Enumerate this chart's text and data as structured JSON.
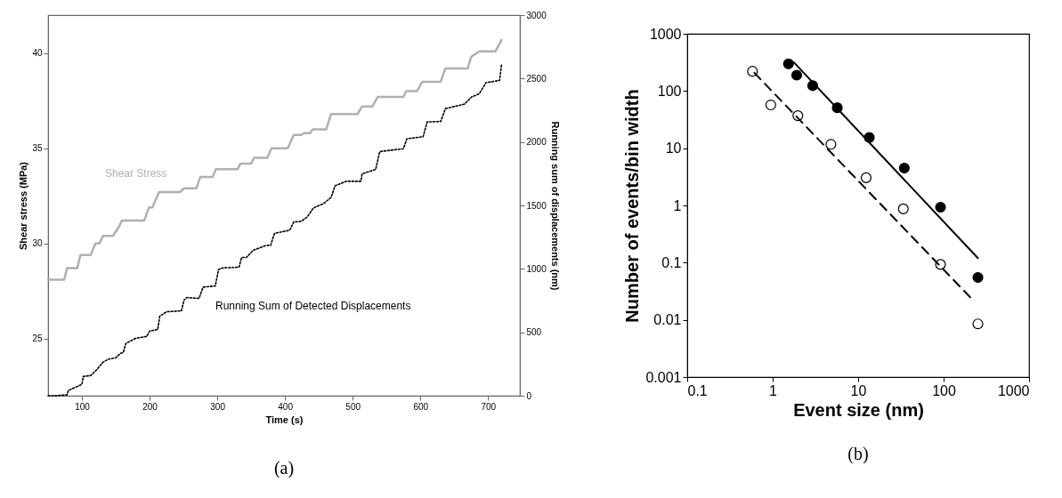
{
  "chart_data": [
    {
      "type": "line",
      "xlabel": "Time (s)",
      "ylabel": "Shear stress (MPa)",
      "y2label": "Running sum of displacements (nm)",
      "xlim": [
        50,
        747
      ],
      "xticks": [
        100,
        200,
        300,
        400,
        500,
        600,
        700
      ],
      "ylim": [
        22,
        42
      ],
      "yticks": [
        25,
        30,
        35,
        40
      ],
      "y2lim": [
        0,
        3000
      ],
      "y2ticks": [
        0,
        500,
        1000,
        1500,
        2000,
        2500,
        3000
      ],
      "annotations": [
        "(a)"
      ],
      "series": [
        {
          "name": "Shear Stress",
          "color": "#b0b0b0",
          "x": [
            50,
            74,
            78,
            93,
            98,
            113,
            120,
            126,
            131,
            146,
            155,
            159,
            192,
            199,
            204,
            214,
            245,
            251,
            269,
            275,
            293,
            298,
            330,
            334,
            350,
            354,
            374,
            380,
            404,
            413,
            424,
            428,
            437,
            441,
            461,
            468,
            507,
            514,
            529,
            537,
            575,
            579,
            595,
            603,
            630,
            637,
            670,
            675,
            687,
            711,
            720
          ],
          "values": [
            28.1,
            28.1,
            28.7,
            28.7,
            29.4,
            29.4,
            30.0,
            30.0,
            30.4,
            30.4,
            30.9,
            31.2,
            31.2,
            31.9,
            31.9,
            32.7,
            32.7,
            32.9,
            32.9,
            33.5,
            33.5,
            33.9,
            33.9,
            34.2,
            34.2,
            34.5,
            34.5,
            35.0,
            35.0,
            35.7,
            35.7,
            35.8,
            35.8,
            36.0,
            36.0,
            36.8,
            36.8,
            37.2,
            37.2,
            37.7,
            37.7,
            38.0,
            38.0,
            38.5,
            38.5,
            39.2,
            39.2,
            39.8,
            40.1,
            40.1,
            40.7
          ]
        },
        {
          "name": "Running Sum of Detected Displacements",
          "color": "#000000",
          "axis": "y2",
          "line_style": "dotted",
          "x": [
            50,
            58,
            78,
            80,
            100,
            102,
            113,
            122,
            131,
            139,
            150,
            157,
            161,
            165,
            179,
            196,
            200,
            212,
            215,
            225,
            247,
            251,
            255,
            273,
            279,
            297,
            302,
            308,
            332,
            336,
            343,
            353,
            371,
            379,
            383,
            385,
            407,
            413,
            424,
            433,
            442,
            457,
            468,
            474,
            490,
            512,
            514,
            534,
            540,
            564,
            575,
            580,
            604,
            610,
            630,
            637,
            665,
            676,
            687,
            697,
            717,
            720
          ],
          "values": [
            0,
            0,
            7,
            42,
            89,
            152,
            159,
            206,
            264,
            288,
            299,
            334,
            341,
            412,
            452,
            468,
            510,
            522,
            627,
            662,
            669,
            755,
            774,
            767,
            856,
            865,
            996,
            1008,
            1013,
            1090,
            1090,
            1146,
            1183,
            1187,
            1258,
            1281,
            1304,
            1370,
            1374,
            1410,
            1480,
            1515,
            1562,
            1655,
            1690,
            1690,
            1749,
            1784,
            1924,
            1940,
            1947,
            2025,
            2041,
            2158,
            2162,
            2263,
            2298,
            2356,
            2380,
            2468,
            2485,
            2614
          ]
        }
      ]
    },
    {
      "type": "scatter",
      "xlabel": "Event size (nm)",
      "ylabel": "Number of events/bin width",
      "log": "xy",
      "xlim": [
        0.1,
        1000
      ],
      "xticks": [
        0.1,
        1,
        10,
        100,
        1000
      ],
      "ylim": [
        0.001,
        1000
      ],
      "yticks": [
        0.001,
        0.01,
        0.1,
        1,
        10,
        100,
        1000
      ],
      "annotations": [
        "(b)"
      ],
      "series": [
        {
          "color": "#000000",
          "marker": "circle",
          "x": [
            1.53,
            1.91,
            2.94,
            5.7,
            13.5,
            34.7,
            92,
            252
          ],
          "values": [
            298,
            189,
            124,
            51,
            15.4,
            4.5,
            0.93,
            0.055
          ]
        },
        {
          "color": "#ffffff",
          "marker": "circle",
          "x": [
            0.58,
            0.95,
            1.97,
            4.8,
            12.4,
            33.8,
            92,
            252
          ],
          "values": [
            221,
            57,
            37,
            11.7,
            3.05,
            0.87,
            0.093,
            0.0085
          ]
        },
        {
          "type": "line",
          "color": "#000000",
          "line_style": "solid",
          "x": [
            1.77,
            252
          ],
          "values": [
            316,
            0.12
          ]
        },
        {
          "type": "line",
          "color": "#000000",
          "line_style": "dashed",
          "x": [
            0.61,
            215
          ],
          "values": [
            208,
            0.023
          ]
        }
      ]
    }
  ]
}
